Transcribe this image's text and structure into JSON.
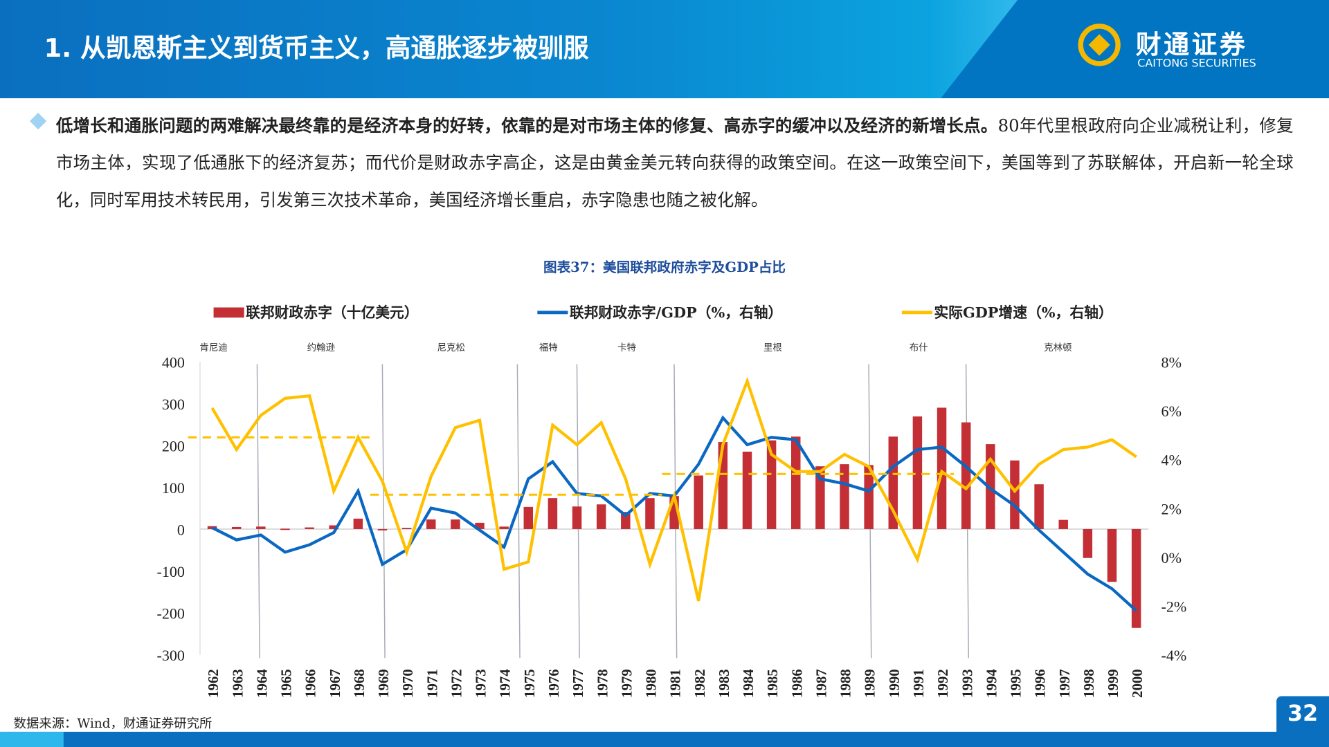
{
  "header": {
    "title": "1. 从凯恩斯主义到货币主义，高通胀逐步被驯服",
    "logo_cn": "财通证券",
    "logo_en": "CAITONG SECURITIES"
  },
  "body": {
    "bold": "低增长和通胀问题的两难解决最终靠的是经济本身的好转，依靠的是对市场主体的修复、高赤字的缓冲以及经济的新增长点。",
    "rest": "80年代里根政府向企业减税让利，修复市场主体，实现了低通胀下的经济复苏；而代价是财政赤字高企，这是由黄金美元转向获得的政策空间。在这一政策空间下，美国等到了苏联解体，开启新一轮全球化，同时军用技术转民用，引发第三次技术革命，美国经济增长重启，赤字隐患也随之被化解。"
  },
  "chart_title": "图表37：美国联邦政府赤字及GDP占比",
  "source": "数据来源：Wind，财通证券研究所",
  "page_number": "32",
  "colors": {
    "bar": "#c42f35",
    "deficit_gdp": "#0a68c2",
    "gdp": "#ffc000",
    "brand": "#0a6fbf"
  },
  "chart_data": {
    "type": "bar+line",
    "categories": [
      "1962",
      "1963",
      "1964",
      "1965",
      "1966",
      "1967",
      "1968",
      "1969",
      "1970",
      "1971",
      "1972",
      "1973",
      "1974",
      "1975",
      "1976",
      "1977",
      "1978",
      "1979",
      "1980",
      "1981",
      "1982",
      "1983",
      "1984",
      "1985",
      "1986",
      "1987",
      "1988",
      "1989",
      "1990",
      "1991",
      "1992",
      "1993",
      "1994",
      "1995",
      "1996",
      "1997",
      "1998",
      "1999",
      "2000"
    ],
    "series": [
      {
        "name": "联邦财政赤字（十亿美元）",
        "type": "bar",
        "axis": "left",
        "values": [
          7,
          5,
          6,
          1,
          4,
          9,
          25,
          -3,
          3,
          23,
          23,
          15,
          6,
          53,
          74,
          54,
          59,
          41,
          74,
          79,
          128,
          208,
          185,
          212,
          221,
          150,
          155,
          153,
          221,
          269,
          290,
          255,
          203,
          164,
          107,
          22,
          -69,
          -126,
          -236
        ]
      },
      {
        "name": "联邦财政赤字/GDP（%，右轴）",
        "type": "line",
        "axis": "right",
        "values": [
          1.2,
          0.7,
          0.9,
          0.2,
          0.5,
          1.0,
          2.7,
          -0.3,
          0.3,
          2.0,
          1.8,
          1.1,
          0.4,
          3.2,
          3.9,
          2.6,
          2.5,
          1.7,
          2.6,
          2.5,
          3.8,
          5.7,
          4.6,
          4.9,
          4.8,
          3.2,
          3.0,
          2.7,
          3.7,
          4.4,
          4.5,
          3.7,
          2.8,
          2.1,
          1.1,
          0.2,
          -0.7,
          -1.3,
          -2.2
        ]
      },
      {
        "name": "实际GDP增速（%，右轴）",
        "type": "line",
        "axis": "right",
        "values": [
          6.1,
          4.4,
          5.8,
          6.5,
          6.6,
          2.7,
          4.9,
          3.1,
          0.2,
          3.3,
          5.3,
          5.6,
          -0.5,
          -0.2,
          5.4,
          4.6,
          5.5,
          3.2,
          -0.3,
          2.5,
          -1.8,
          4.6,
          7.2,
          4.2,
          3.5,
          3.5,
          4.2,
          3.7,
          1.9,
          -0.1,
          3.5,
          2.8,
          4.0,
          2.7,
          3.8,
          4.4,
          4.5,
          4.8,
          4.1
        ]
      }
    ],
    "averages": [
      {
        "from": "1962",
        "to": "1968",
        "value": 4.9
      },
      {
        "from": "1969",
        "to": "1980",
        "value": 2.55
      },
      {
        "from": "1981",
        "to": "1992",
        "value": 3.4
      }
    ],
    "presidents": [
      {
        "name": "肯尼迪",
        "start": 1961.5
      },
      {
        "name": "约翰逊",
        "start": 1963.9
      },
      {
        "name": "尼克松",
        "start": 1969.05
      },
      {
        "name": "福特",
        "start": 1974.6
      },
      {
        "name": "卡特",
        "start": 1977.05
      },
      {
        "name": "里根",
        "start": 1981.05
      },
      {
        "name": "布什",
        "start": 1989.05
      },
      {
        "name": "克林顿",
        "start": 1993.05
      }
    ],
    "left_axis": {
      "ticks": [
        "400",
        "300",
        "200",
        "100",
        "0",
        "-100",
        "-200",
        "-300"
      ],
      "range": [
        -300,
        400
      ]
    },
    "right_axis": {
      "ticks": [
        "8%",
        "6%",
        "4%",
        "2%",
        "0%",
        "-2%",
        "-4%"
      ],
      "range": [
        -4,
        8
      ]
    },
    "legend": "top",
    "grid": false
  }
}
